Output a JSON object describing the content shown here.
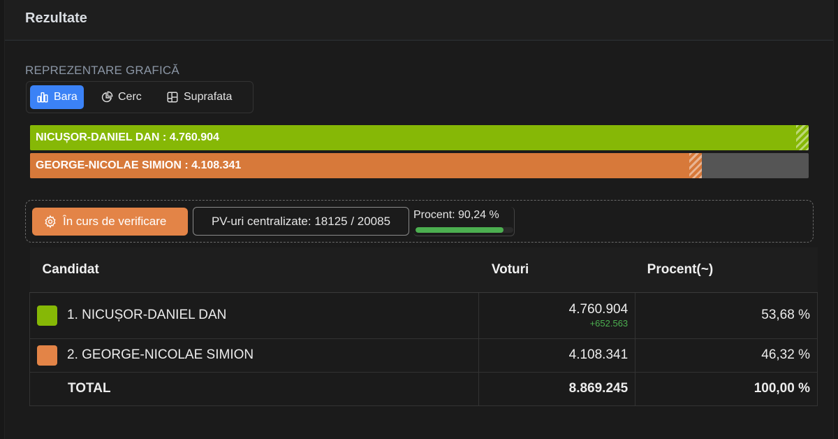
{
  "header": {
    "title": "Rezultate"
  },
  "graph": {
    "section_label": "REPREZENTARE GRAFICĂ",
    "buttons": [
      {
        "label": "Bara",
        "icon": "bar-chart-icon",
        "active": true
      },
      {
        "label": "Cerc",
        "icon": "pie-chart-icon",
        "active": false
      },
      {
        "label": "Suprafata",
        "icon": "layout-grid-icon",
        "active": false
      }
    ],
    "bars": [
      {
        "label": "NICUȘOR-DANIEL DAN : 4.760.904",
        "value": 4760904,
        "fill_fraction": 1.0,
        "color": "#86b806"
      },
      {
        "label": "GEORGE-NICOLAE SIMION : 4.108.341",
        "value": 4108341,
        "fill_fraction": 0.8629,
        "color": "#d7793a"
      }
    ]
  },
  "status": {
    "verif_label": "În curs de verificare",
    "verif_icon": "gear-icon",
    "verif_color": "#e38447",
    "pv_label": "PV-uri centralizate: 18125 / 20085",
    "procent_label": "Procent: 90,24 %",
    "procent_value": 90.24
  },
  "table": {
    "headers": {
      "candidat": "Candidat",
      "voturi": "Voturi",
      "procent": "Procent(~)"
    },
    "rows": [
      {
        "name": "1. NICUȘOR-DANIEL DAN",
        "color": "#86b806",
        "votes": "4.760.904",
        "delta": "+652.563",
        "percent": "53,68 %"
      },
      {
        "name": "2. GEORGE-NICOLAE SIMION",
        "color": "#e38447",
        "votes": "4.108.341",
        "delta": "",
        "percent": "46,32 %"
      }
    ],
    "total": {
      "label": "TOTAL",
      "votes": "8.869.245",
      "percent": "100,00 %"
    }
  }
}
